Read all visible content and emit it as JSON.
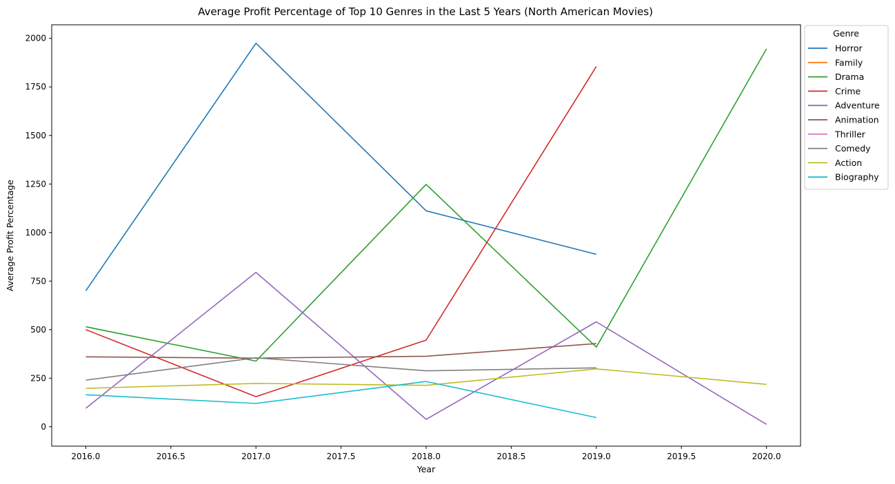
{
  "chart_data": {
    "type": "line",
    "title": "Average Profit Percentage of Top 10 Genres in the Last 5 Years (North American Movies)",
    "xlabel": "Year",
    "ylabel": "Average Profit Percentage",
    "xlim": [
      2015.8,
      2020.2
    ],
    "ylim": [
      -100,
      2070
    ],
    "xticks": [
      2016.0,
      2016.5,
      2017.0,
      2017.5,
      2018.0,
      2018.5,
      2019.0,
      2019.5,
      2020.0
    ],
    "xtick_labels": [
      "2016.0",
      "2016.5",
      "2017.0",
      "2017.5",
      "2018.0",
      "2018.5",
      "2019.0",
      "2019.5",
      "2020.0"
    ],
    "yticks": [
      0,
      250,
      500,
      750,
      1000,
      1250,
      1500,
      1750,
      2000
    ],
    "ytick_labels": [
      "0",
      "250",
      "500",
      "750",
      "1000",
      "1250",
      "1500",
      "1750",
      "2000"
    ],
    "grid": false,
    "legend": {
      "title": "Genre",
      "placement": "outside-top-right"
    },
    "series": [
      {
        "name": "Horror",
        "color": "#1f77b4",
        "x": [
          2016,
          2017,
          2018,
          2019
        ],
        "y": [
          700,
          1975,
          1112,
          888
        ]
      },
      {
        "name": "Family",
        "color": "#ff7f0e",
        "x": [],
        "y": []
      },
      {
        "name": "Drama",
        "color": "#2ca02c",
        "x": [
          2016,
          2017,
          2018,
          2019,
          2020
        ],
        "y": [
          515,
          338,
          1248,
          410,
          1946
        ]
      },
      {
        "name": "Crime",
        "color": "#d62728",
        "x": [
          2016,
          2017,
          2018,
          2019
        ],
        "y": [
          500,
          155,
          446,
          1855
        ]
      },
      {
        "name": "Adventure",
        "color": "#9467bd",
        "x": [
          2016,
          2017,
          2018,
          2019,
          2020
        ],
        "y": [
          95,
          795,
          38,
          540,
          12
        ]
      },
      {
        "name": "Animation",
        "color": "#8c564b",
        "x": [
          2016,
          2017,
          2018,
          2019
        ],
        "y": [
          360,
          353,
          363,
          428
        ]
      },
      {
        "name": "Thriller",
        "color": "#e377c2",
        "x": [],
        "y": []
      },
      {
        "name": "Comedy",
        "color": "#7f7f7f",
        "x": [
          2016,
          2017,
          2018,
          2019
        ],
        "y": [
          240,
          355,
          288,
          303
        ]
      },
      {
        "name": "Action",
        "color": "#bcbd22",
        "x": [
          2016,
          2017,
          2018,
          2019,
          2020
        ],
        "y": [
          198,
          223,
          213,
          298,
          218
        ]
      },
      {
        "name": "Biography",
        "color": "#17becf",
        "x": [
          2016,
          2017,
          2018,
          2019
        ],
        "y": [
          165,
          120,
          233,
          47
        ]
      }
    ]
  }
}
